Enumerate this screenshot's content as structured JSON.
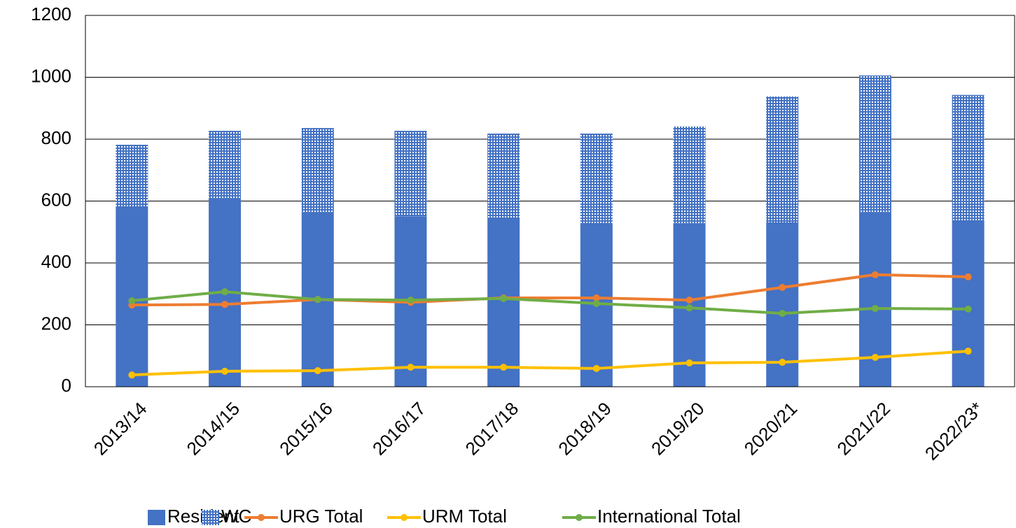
{
  "chart_data": {
    "type": "bar",
    "categories": [
      "2013/14",
      "2014/15",
      "2015/16",
      "2016/17",
      "2017/18",
      "2018/19",
      "2019/20",
      "2020/21",
      "2021/22",
      "2022/23*"
    ],
    "series": [
      {
        "name": "Resident",
        "type": "bar",
        "color": "#4472c4",
        "values": [
          583,
          610,
          563,
          551,
          547,
          529,
          527,
          531,
          563,
          538
        ]
      },
      {
        "name": "WC",
        "type": "bar",
        "color": "#4472c4",
        "values": [
          199,
          217,
          273,
          276,
          271,
          289,
          314,
          407,
          443,
          405
        ]
      },
      {
        "name": "URG Total",
        "type": "line",
        "color": "#ed7d31",
        "values": [
          264,
          266,
          282,
          273,
          287,
          287,
          280,
          321,
          362,
          355
        ]
      },
      {
        "name": "URM Total",
        "type": "line",
        "color": "#ffc000",
        "values": [
          38,
          50,
          52,
          63,
          63,
          59,
          77,
          79,
          95,
          115
        ]
      },
      {
        "name": "International Total",
        "type": "line",
        "color": "#70ad47",
        "values": [
          278,
          307,
          282,
          280,
          285,
          269,
          255,
          237,
          253,
          251
        ]
      }
    ],
    "ylim": [
      0,
      1200
    ],
    "yticks": [
      0,
      200,
      400,
      600,
      800,
      1000,
      1200
    ],
    "grid": true,
    "legend": "bottom"
  }
}
